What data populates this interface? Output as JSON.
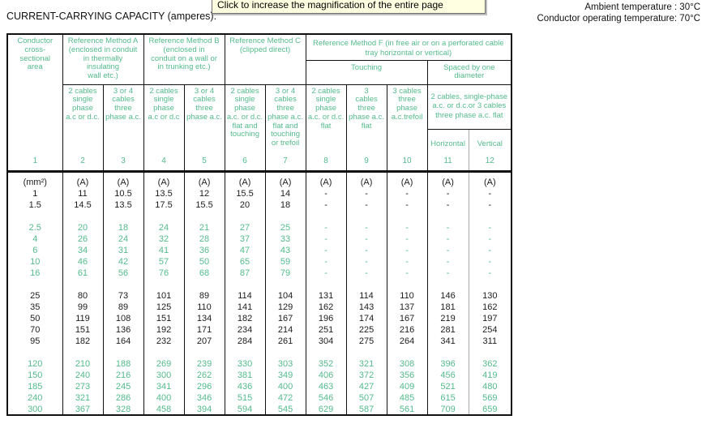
{
  "header": {
    "title": "CURRENT-CARRYING CAPACITY (amperes):",
    "tooltip": "Click to increase the magnification of the entire page",
    "ambient_temperature": "Ambient temperature : 30°C",
    "operating_temperature": "Conductor operating temperature: 70°C"
  },
  "colors": {
    "accent_green": "#54ba8d",
    "text_black": "#1c1c1c",
    "tooltip_bg": "#ffffe1",
    "divider_gray": "#ababab"
  },
  "table": {
    "col1_header": "Conductor\ncross-\nsectional\narea",
    "col1_num": "1",
    "method_a": "Reference Method A\n(enclosed in conduit\nin thermally\ninsulating\nwall etc.)",
    "method_b": "Reference Method B\n(enclosed in\nconduit on a wall or\nin trunking etc.)",
    "method_c": "Reference Method C\n(clipped direct)",
    "method_f": "Reference Method F (in free air or on a perforated cable\ntray horizontal or vertical)",
    "touching": "Touching",
    "spaced": "Spaced by one diameter",
    "spaced_sub": "2 cables, single-phase\na.c. or d.c.or 3 cables\nthree phase a.c. flat",
    "horizontal": {
      "label": "Horizontal",
      "num": "11"
    },
    "vertical": {
      "label": "Vertical",
      "num": "12"
    },
    "sub_columns": [
      {
        "text": "2 cables\nsingle\nphase\na.c or d.c.",
        "num": "2"
      },
      {
        "text": "3 or 4\ncables\nthree\nphase a.c.",
        "num": "3"
      },
      {
        "text": "2 cables\nsingle\nphase\na.c or d.c",
        "num": "4"
      },
      {
        "text": "3 or 4\ncables\nthree\nphase a.c.",
        "num": "5"
      },
      {
        "text": "2 cables\nsingle\nphase\na.c. or d.c.\nflat and\ntouching",
        "num": "6"
      },
      {
        "text": "3 or 4\ncables\nthree\nphase a.c.\nflat and\ntouching\nor trefoil",
        "num": "7"
      },
      {
        "text": "2 cables\nsingle\nphase\na.c. or d.c.\nflat",
        "num": "8"
      },
      {
        "text": "3\ncables\nthree\nphase a.c.\nflat",
        "num": "9"
      },
      {
        "text": "3 cables\nthree\nphase\na.c.trefoil",
        "num": "10"
      }
    ],
    "body_groups": [
      {
        "color": "black",
        "rows": [
          [
            "(mm²)",
            "(A)",
            "(A)",
            "(A)",
            "(A)",
            "(A)",
            "(A)",
            "(A)",
            "(A)",
            "(A)",
            "(A)",
            "(A)"
          ],
          [
            "1",
            "11",
            "10.5",
            "13.5",
            "12",
            "15.5",
            "14",
            "-",
            "-",
            "-",
            "-",
            "-"
          ],
          [
            "1.5",
            "14.5",
            "13.5",
            "17.5",
            "15.5",
            "20",
            "18",
            "-",
            "-",
            "-",
            "-",
            "-"
          ]
        ]
      },
      {
        "color": "green",
        "rows": [
          [
            "2.5",
            "20",
            "18",
            "24",
            "21",
            "27",
            "25",
            "-",
            "-",
            "-",
            "-",
            "-"
          ],
          [
            "4",
            "26",
            "24",
            "32",
            "28",
            "37",
            "33",
            "-",
            "-",
            "-",
            "-",
            "-"
          ],
          [
            "6",
            "34",
            "31",
            "41",
            "36",
            "47",
            "43",
            "-",
            "-",
            "-",
            "-",
            "-"
          ],
          [
            "10",
            "46",
            "42",
            "57",
            "50",
            "65",
            "59",
            "-",
            "-",
            "-",
            "-",
            "-"
          ],
          [
            "16",
            "61",
            "56",
            "76",
            "68",
            "87",
            "79",
            "-",
            "-",
            "-",
            "-",
            "-"
          ]
        ]
      },
      {
        "color": "black",
        "rows": [
          [
            "25",
            "80",
            "73",
            "101",
            "89",
            "114",
            "104",
            "131",
            "114",
            "110",
            "146",
            "130"
          ],
          [
            "35",
            "99",
            "89",
            "125",
            "110",
            "141",
            "129",
            "162",
            "143",
            "137",
            "181",
            "162"
          ],
          [
            "50",
            "119",
            "108",
            "151",
            "134",
            "182",
            "167",
            "196",
            "174",
            "167",
            "219",
            "197"
          ],
          [
            "70",
            "151",
            "136",
            "192",
            "171",
            "234",
            "214",
            "251",
            "225",
            "216",
            "281",
            "254"
          ],
          [
            "95",
            "182",
            "164",
            "232",
            "207",
            "284",
            "261",
            "304",
            "275",
            "264",
            "341",
            "311"
          ]
        ]
      },
      {
        "color": "green",
        "rows": [
          [
            "120",
            "210",
            "188",
            "269",
            "239",
            "330",
            "303",
            "352",
            "321",
            "308",
            "396",
            "362"
          ],
          [
            "150",
            "240",
            "216",
            "300",
            "262",
            "381",
            "349",
            "406",
            "372",
            "356",
            "456",
            "419"
          ],
          [
            "185",
            "273",
            "245",
            "341",
            "296",
            "436",
            "400",
            "463",
            "427",
            "409",
            "521",
            "480"
          ],
          [
            "240",
            "321",
            "286",
            "400",
            "346",
            "515",
            "472",
            "546",
            "507",
            "485",
            "615",
            "569"
          ],
          [
            "300",
            "367",
            "328",
            "458",
            "394",
            "594",
            "545",
            "629",
            "587",
            "561",
            "709",
            "659"
          ]
        ]
      }
    ]
  }
}
